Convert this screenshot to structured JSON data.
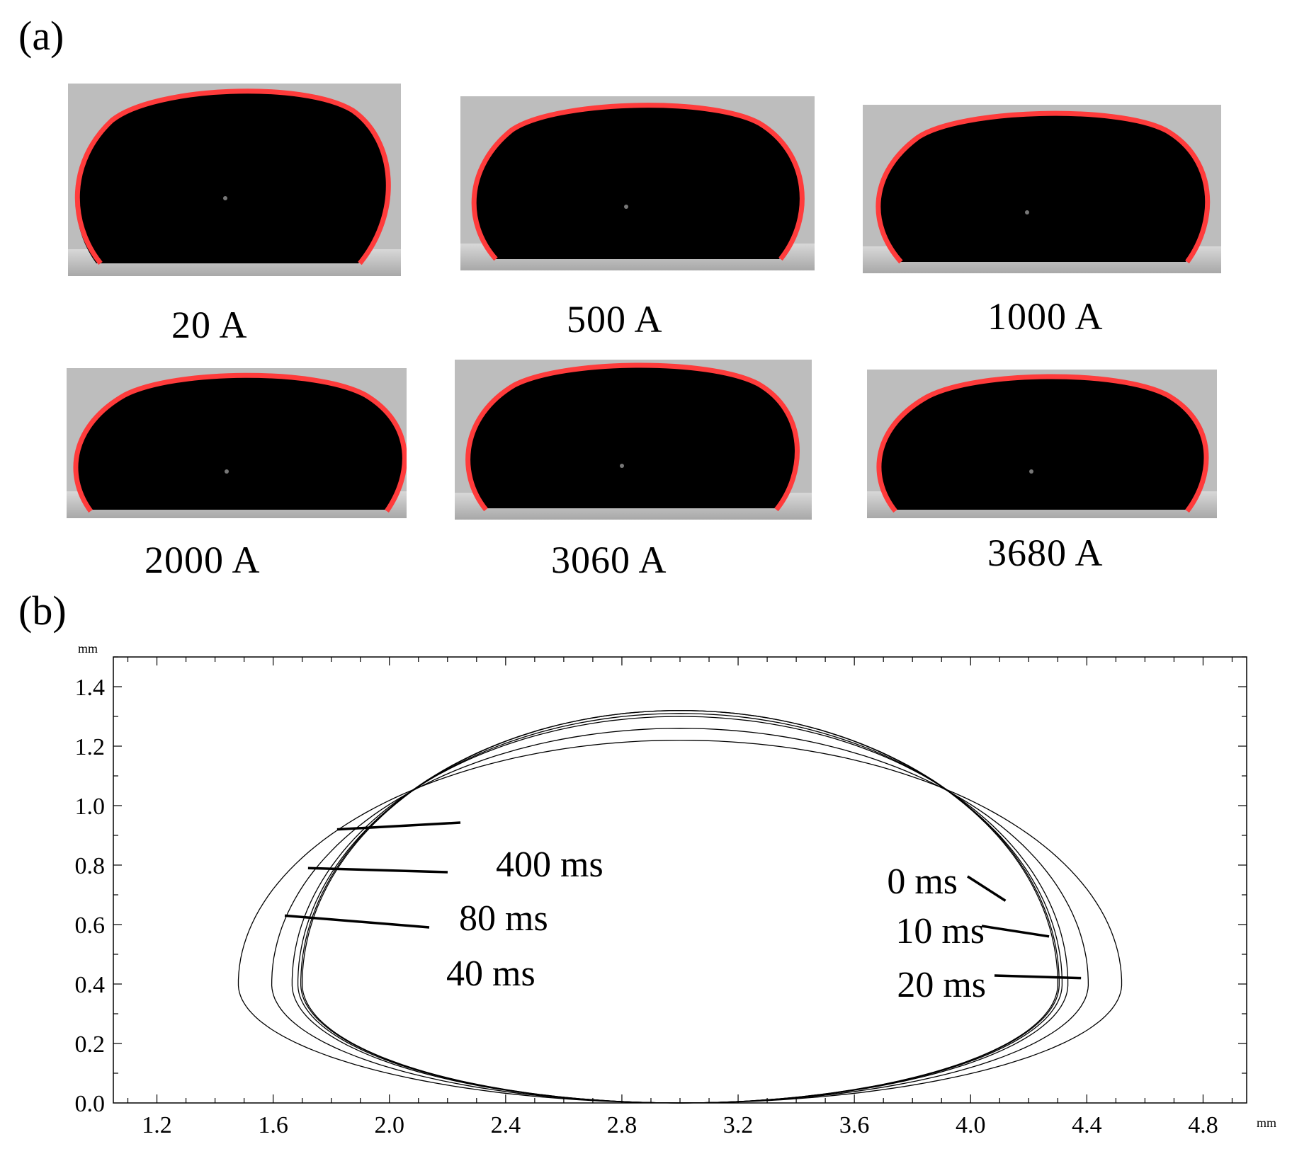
{
  "figure": {
    "panel_a_label": "(a)",
    "panel_b_label": "(b)",
    "droplet_images": [
      {
        "label": "20 A"
      },
      {
        "label": "500 A"
      },
      {
        "label": "1000 A"
      },
      {
        "label": "2000 A"
      },
      {
        "label": "3060 A"
      },
      {
        "label": "3680 A"
      }
    ],
    "colors": {
      "outline": "#ff3b3b",
      "droplet": "#000000",
      "background": "#bdbdbd"
    }
  },
  "chart_data": {
    "type": "line",
    "xlabel": "mm",
    "ylabel": "mm",
    "xlim": [
      1.05,
      4.95
    ],
    "ylim": [
      0.0,
      1.5
    ],
    "xticks": [
      "1.2",
      "1.6",
      "2.0",
      "2.4",
      "2.8",
      "3.2",
      "3.6",
      "4.0",
      "4.4",
      "4.8"
    ],
    "yticks": [
      "0.0",
      "0.2",
      "0.4",
      "0.6",
      "0.8",
      "1.0",
      "1.2",
      "1.4"
    ],
    "series": [
      {
        "name": "0 ms",
        "center_x": 3.0,
        "base_left": 1.68,
        "base_right": 4.32,
        "height": 1.22
      },
      {
        "name": "10 ms",
        "center_x": 3.0,
        "base_left": 1.76,
        "base_right": 4.29,
        "height": 1.26
      },
      {
        "name": "20 ms",
        "center_x": 3.0,
        "base_left": 1.77,
        "base_right": 4.28,
        "height": 1.3
      },
      {
        "name": "40 ms",
        "center_x": 3.0,
        "base_left": 1.75,
        "base_right": 4.25,
        "height": 1.31
      },
      {
        "name": "80 ms",
        "center_x": 3.0,
        "base_left": 1.73,
        "base_right": 4.24,
        "height": 1.32
      },
      {
        "name": "400 ms",
        "center_x": 3.0,
        "base_left": 1.72,
        "base_right": 4.22,
        "height": 1.32
      }
    ],
    "annotations": [
      {
        "text": "400 ms",
        "point": [
          1.82,
          0.92
        ]
      },
      {
        "text": "80 ms",
        "point": [
          1.72,
          0.79
        ]
      },
      {
        "text": "40 ms",
        "point": [
          1.64,
          0.63
        ]
      },
      {
        "text": "0 ms",
        "point": [
          4.12,
          0.68
        ]
      },
      {
        "text": "10 ms",
        "point": [
          4.27,
          0.56
        ]
      },
      {
        "text": "20 ms",
        "point": [
          4.38,
          0.42
        ]
      }
    ]
  }
}
